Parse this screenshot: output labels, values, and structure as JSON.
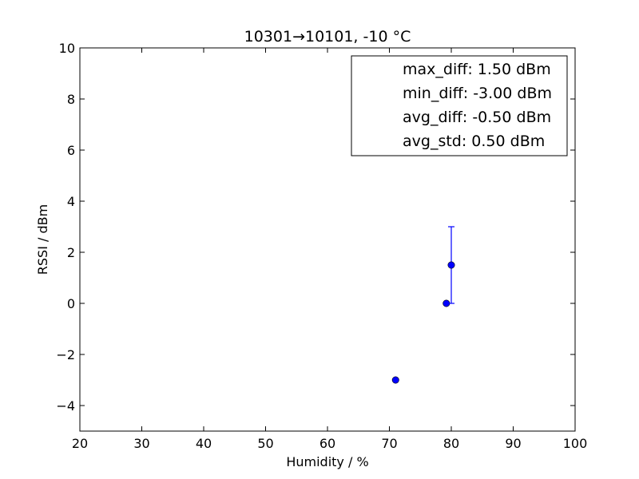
{
  "chart_data": {
    "type": "scatter",
    "title": "10301→10101, -10 °C",
    "xlabel": "Humidity / %",
    "ylabel": "RSSI / dBm",
    "xlim": [
      20,
      100
    ],
    "ylim": [
      -5,
      10
    ],
    "x_ticks": [
      20,
      30,
      40,
      50,
      60,
      70,
      80,
      90,
      100
    ],
    "y_ticks": [
      -4,
      -2,
      0,
      2,
      4,
      6,
      8,
      10
    ],
    "x_tick_labels": [
      "20",
      "30",
      "40",
      "50",
      "60",
      "70",
      "80",
      "90",
      "100"
    ],
    "y_tick_labels": [
      "−4",
      "−2",
      "0",
      "2",
      "4",
      "6",
      "8",
      "10"
    ],
    "grid": false,
    "marker_color": "#0000ff",
    "points": [
      {
        "x": 71.0,
        "y": -3.0
      },
      {
        "x": 79.2,
        "y": 0.0
      },
      {
        "x": 80.0,
        "y": 1.5,
        "err_low": 0.0,
        "err_high": 3.0
      }
    ],
    "legend": {
      "placement": "top-right",
      "entries": [
        "max_diff: 1.50 dBm",
        "min_diff: -3.00 dBm",
        "avg_diff: -0.50 dBm",
        "avg_std: 0.50 dBm"
      ]
    }
  }
}
